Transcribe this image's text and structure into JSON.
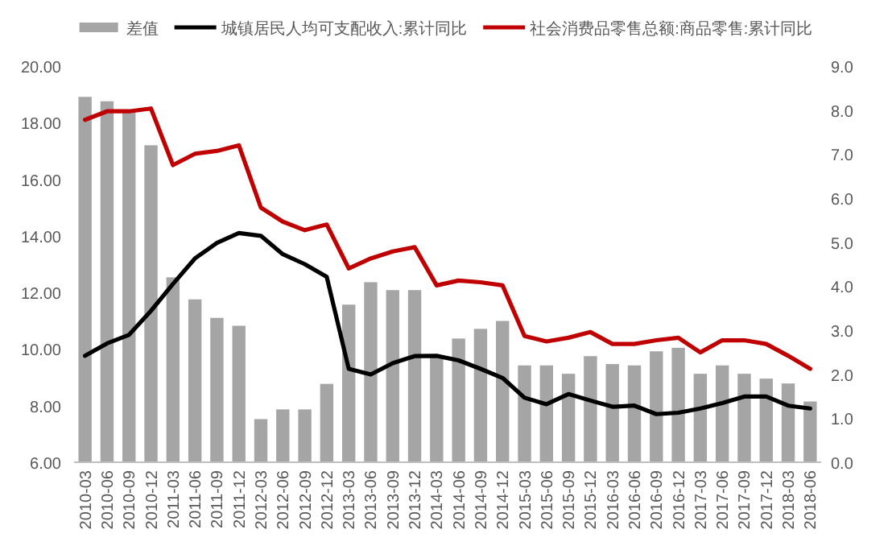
{
  "chart_data": {
    "type": "bar",
    "legend": "top",
    "grid": false,
    "categories": [
      "2010-03",
      "2010-06",
      "2010-09",
      "2010-12",
      "2011-03",
      "2011-06",
      "2011-09",
      "2011-12",
      "2012-03",
      "2012-06",
      "2012-09",
      "2012-12",
      "2013-03",
      "2013-06",
      "2013-09",
      "2013-12",
      "2014-03",
      "2014-06",
      "2014-09",
      "2014-12",
      "2015-03",
      "2015-06",
      "2015-09",
      "2015-12",
      "2016-03",
      "2016-06",
      "2016-09",
      "2016-12",
      "2017-03",
      "2017-06",
      "2017-09",
      "2017-12",
      "2018-03",
      "2018-06"
    ],
    "series": [
      {
        "name": "差值",
        "axis": "y2",
        "color": "#a5a5a5",
        "values": [
          8.3,
          8.2,
          8.0,
          7.2,
          4.2,
          3.7,
          3.28,
          3.1,
          0.98,
          1.2,
          1.2,
          1.78,
          3.58,
          4.09,
          3.91,
          3.91,
          2.38,
          2.81,
          3.03,
          3.21,
          2.2,
          2.2,
          2.01,
          2.41,
          2.23,
          2.2,
          2.52,
          2.6,
          2.01,
          2.2,
          2.01,
          1.9,
          1.79,
          1.38
        ]
      },
      {
        "name": "城镇居民人均可支配收入:累计同比",
        "type": "line",
        "color": "#000000",
        "values": [
          9.76,
          10.2,
          10.5,
          11.35,
          12.3,
          13.2,
          13.75,
          14.1,
          14.0,
          13.35,
          13.0,
          12.55,
          9.3,
          9.1,
          9.5,
          9.75,
          9.76,
          9.6,
          9.3,
          8.98,
          8.28,
          8.05,
          8.41,
          8.18,
          7.96,
          8.0,
          7.7,
          7.75,
          7.9,
          8.09,
          8.32,
          8.32,
          8.0,
          7.9
        ]
      },
      {
        "name": "社会消费品零售总额:商品零售:累计同比",
        "type": "line",
        "color": "#c00000",
        "values": [
          18.1,
          18.4,
          18.4,
          18.5,
          16.5,
          16.9,
          17.0,
          17.2,
          15.0,
          14.5,
          14.2,
          14.4,
          12.85,
          13.2,
          13.45,
          13.6,
          12.25,
          12.42,
          12.36,
          12.25,
          10.46,
          10.27,
          10.4,
          10.6,
          10.18,
          10.18,
          10.31,
          10.4,
          9.88,
          10.31,
          10.31,
          10.18,
          9.76,
          9.3
        ]
      }
    ],
    "ylim": [
      6,
      20
    ],
    "yticks": [
      {
        "value": 6,
        "label": "6.00"
      },
      {
        "value": 8,
        "label": "8.00"
      },
      {
        "value": 10,
        "label": "10.00"
      },
      {
        "value": 12,
        "label": "12.00"
      },
      {
        "value": 14,
        "label": "14.00"
      },
      {
        "value": 16,
        "label": "16.00"
      },
      {
        "value": 18,
        "label": "18.00"
      },
      {
        "value": 20,
        "label": "20.00"
      }
    ],
    "y2lim": [
      0,
      9
    ],
    "y2ticks": [
      {
        "value": 0,
        "label": "0.0"
      },
      {
        "value": 1,
        "label": "1.0"
      },
      {
        "value": 2,
        "label": "2.0"
      },
      {
        "value": 3,
        "label": "3.0"
      },
      {
        "value": 4,
        "label": "4.0"
      },
      {
        "value": 5,
        "label": "5.0"
      },
      {
        "value": 6,
        "label": "6.0"
      },
      {
        "value": 7,
        "label": "7.0"
      },
      {
        "value": 8,
        "label": "8.0"
      },
      {
        "value": 9,
        "label": "9.0"
      }
    ]
  }
}
